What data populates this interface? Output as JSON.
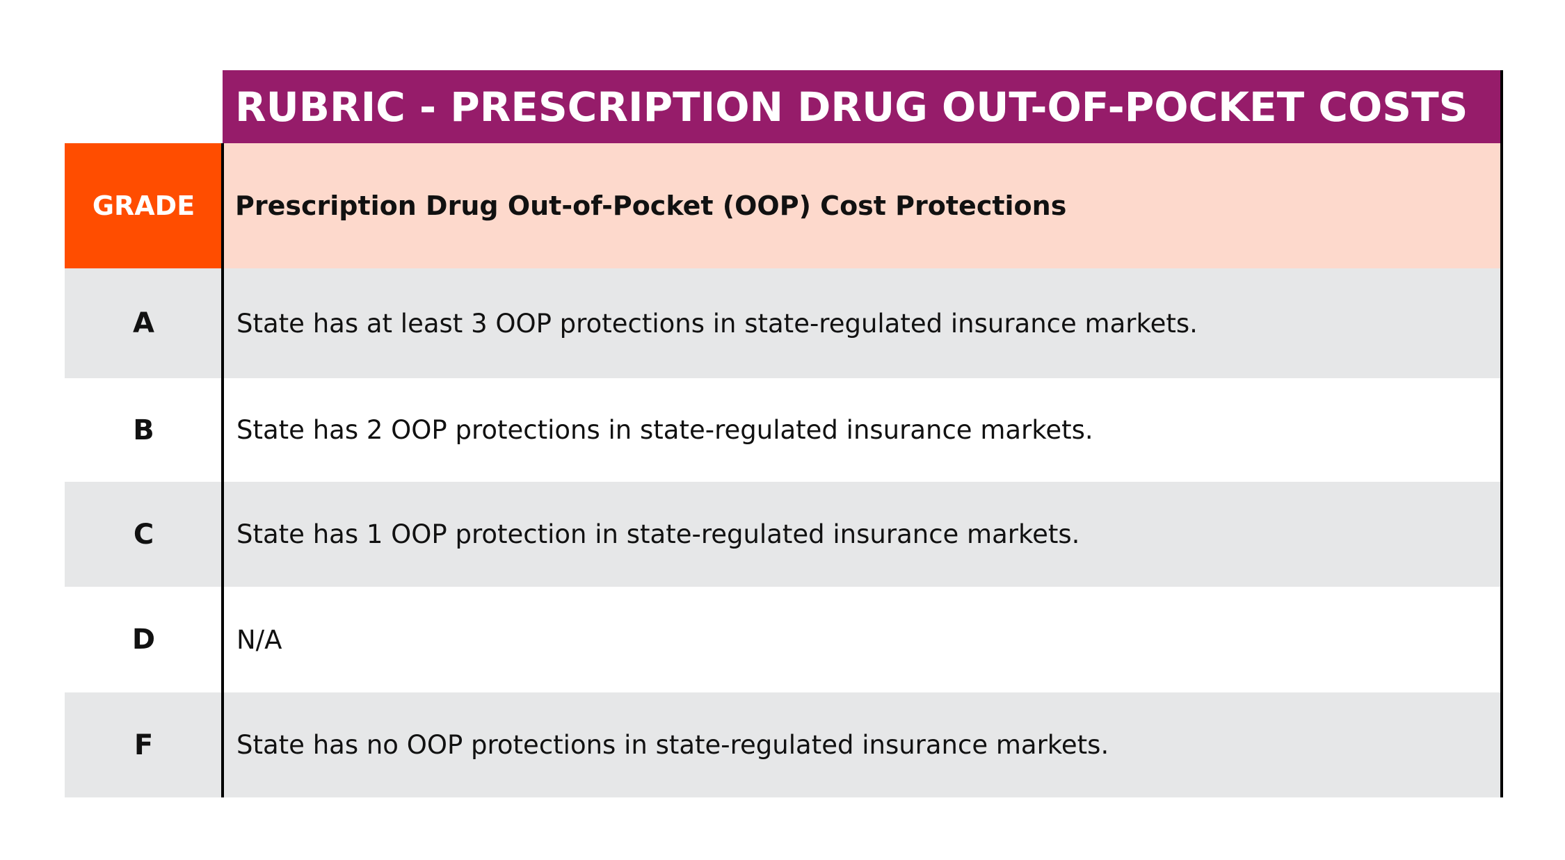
{
  "header": {
    "title": "RUBRIC - PRESCRIPTION DRUG OUT-OF-POCKET COSTS"
  },
  "table": {
    "header": [
      "GRADE",
      "Prescription Drug Out-of-Pocket (OOP) Cost Protections"
    ],
    "rows": [
      [
        "A",
        "State has at least 3 OOP protections in state-regulated insurance markets."
      ],
      [
        "B",
        "State has 2 OOP protections in state-regulated insurance markets."
      ],
      [
        "C",
        "State has 1 OOP protection in state-regulated insurance markets."
      ],
      [
        "D",
        "N/A"
      ],
      [
        "F",
        "State has no OOP protections in state-regulated insurance markets."
      ]
    ]
  }
}
